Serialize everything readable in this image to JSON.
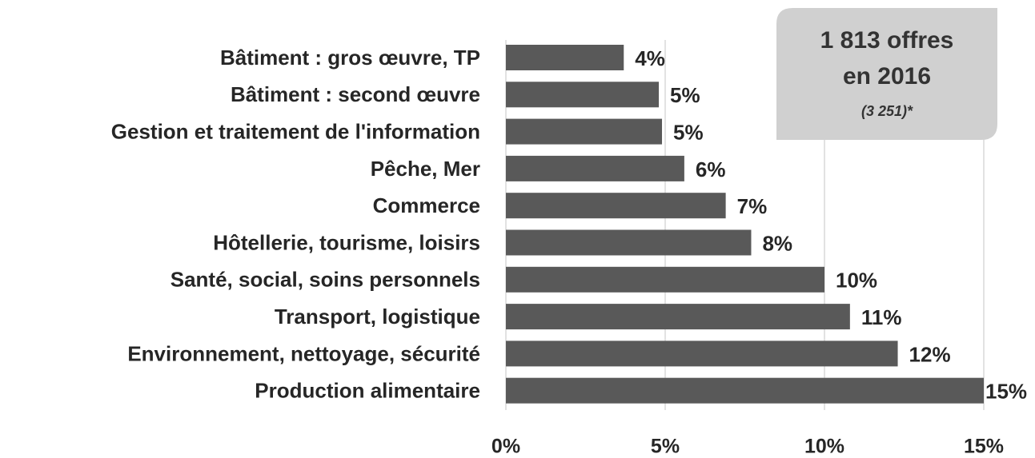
{
  "chart_data": {
    "type": "bar",
    "orientation": "horizontal",
    "categories": [
      "Bâtiment : gros œuvre, TP",
      "Bâtiment : second œuvre",
      "Gestion et traitement de l'information",
      "Pêche, Mer",
      "Commerce",
      "Hôtellerie, tourisme, loisirs",
      "Santé, social, soins personnels",
      "Transport, logistique",
      "Environnement, nettoyage, sécurité",
      "Production alimentaire"
    ],
    "values": [
      3.7,
      4.8,
      4.9,
      5.6,
      6.9,
      7.7,
      10.0,
      10.8,
      12.3,
      15.0
    ],
    "value_labels": [
      "4%",
      "5%",
      "5%",
      "6%",
      "7%",
      "8%",
      "10%",
      "11%",
      "12%",
      "15%"
    ],
    "color": "#595959",
    "xlim": [
      0,
      15
    ],
    "xticks": [
      {
        "value": 0,
        "label": "0%"
      },
      {
        "value": 5,
        "label": "5%"
      },
      {
        "value": 10,
        "label": "10%"
      },
      {
        "value": 15,
        "label": "15%"
      }
    ],
    "grid": true,
    "annotations": [
      "1 813 offres",
      "en 2016",
      "(3 251)*"
    ]
  }
}
